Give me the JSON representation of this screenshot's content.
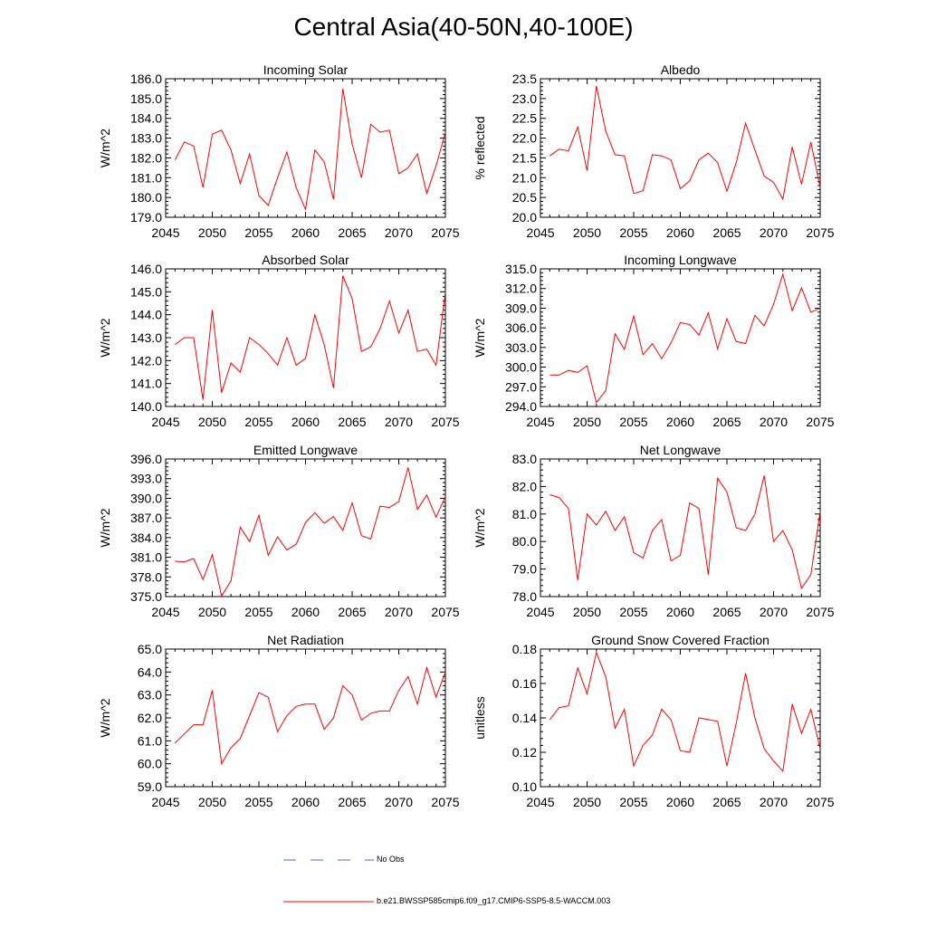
{
  "title": "Central Asia(40-50N,40-100E)",
  "legend": {
    "no_obs_label": "No Obs",
    "no_obs_color": "#4b6fc9",
    "model_label": "b.e21.BWSSP585cmip6.f09_g17.CMIP6-SSP5-8.5-WACCM.003",
    "model_color": "#ff0000"
  },
  "chart_data": [
    {
      "type": "line",
      "title": "Incoming Solar",
      "ylabel": "W/m^2",
      "xlabel": "",
      "xlim": [
        2045,
        2075
      ],
      "ylim": [
        179.0,
        186.0
      ],
      "grid": false,
      "xticks": [
        2045,
        2050,
        2055,
        2060,
        2065,
        2070,
        2075
      ],
      "yticks": [
        "179.0",
        "180.0",
        "181.0",
        "182.0",
        "183.0",
        "184.0",
        "185.0",
        "186.0"
      ],
      "series": [
        {
          "name": "b.e21.BWSSP585cmip6.f09_g17.CMIP6-SSP5-8.5-WACCM.003",
          "x": [
            2046,
            2047,
            2048,
            2049,
            2050,
            2051,
            2052,
            2053,
            2054,
            2055,
            2056,
            2057,
            2058,
            2059,
            2060,
            2061,
            2062,
            2063,
            2064,
            2065,
            2066,
            2067,
            2068,
            2069,
            2070,
            2071,
            2072,
            2073,
            2074,
            2075
          ],
          "values": [
            181.9,
            182.8,
            182.6,
            180.5,
            183.2,
            183.4,
            182.4,
            180.7,
            182.2,
            180.1,
            179.6,
            181.0,
            182.3,
            180.5,
            179.4,
            182.4,
            181.8,
            179.9,
            185.5,
            182.7,
            181.0,
            183.7,
            183.3,
            183.4,
            181.2,
            181.5,
            182.2,
            180.2,
            181.6,
            183.3
          ]
        }
      ]
    },
    {
      "type": "line",
      "title": "Albedo",
      "ylabel": "% reflected",
      "xlabel": "",
      "xlim": [
        2045,
        2075
      ],
      "ylim": [
        20.0,
        23.5
      ],
      "grid": false,
      "xticks": [
        2045,
        2050,
        2055,
        2060,
        2065,
        2070,
        2075
      ],
      "yticks": [
        "20.0",
        "20.5",
        "21.0",
        "21.5",
        "22.0",
        "22.5",
        "23.0",
        "23.5"
      ],
      "series": [
        {
          "name": "b.e21.BWSSP585cmip6.f09_g17.CMIP6-SSP5-8.5-WACCM.003",
          "x": [
            2046,
            2047,
            2048,
            2049,
            2050,
            2051,
            2052,
            2053,
            2054,
            2055,
            2056,
            2057,
            2058,
            2059,
            2060,
            2061,
            2062,
            2063,
            2064,
            2065,
            2066,
            2067,
            2068,
            2069,
            2070,
            2071,
            2072,
            2073,
            2074,
            2075
          ],
          "values": [
            21.55,
            21.72,
            21.68,
            22.28,
            21.18,
            23.32,
            22.18,
            21.58,
            21.55,
            20.6,
            20.67,
            21.58,
            21.55,
            21.45,
            20.72,
            20.92,
            21.45,
            21.62,
            21.38,
            20.66,
            21.38,
            22.38,
            21.7,
            21.04,
            20.88,
            20.46,
            21.78,
            20.83,
            21.9,
            20.75
          ]
        }
      ]
    },
    {
      "type": "line",
      "title": "Absorbed Solar",
      "ylabel": "W/m^2",
      "xlabel": "",
      "xlim": [
        2045,
        2075
      ],
      "ylim": [
        140.0,
        146.0
      ],
      "grid": false,
      "xticks": [
        2045,
        2050,
        2055,
        2060,
        2065,
        2070,
        2075
      ],
      "yticks": [
        "140.0",
        "141.0",
        "142.0",
        "143.0",
        "144.0",
        "145.0",
        "146.0"
      ],
      "series": [
        {
          "name": "b.e21.BWSSP585cmip6.f09_g17.CMIP6-SSP5-8.5-WACCM.003",
          "x": [
            2046,
            2047,
            2048,
            2049,
            2050,
            2051,
            2052,
            2053,
            2054,
            2055,
            2056,
            2057,
            2058,
            2059,
            2060,
            2061,
            2062,
            2063,
            2064,
            2065,
            2066,
            2067,
            2068,
            2069,
            2070,
            2071,
            2072,
            2073,
            2074,
            2075
          ],
          "values": [
            142.7,
            143.0,
            143.0,
            140.3,
            144.2,
            140.6,
            141.9,
            141.5,
            143.0,
            142.7,
            142.3,
            141.8,
            143.0,
            141.8,
            142.1,
            144.0,
            142.7,
            140.8,
            145.7,
            144.7,
            142.4,
            142.6,
            143.4,
            144.6,
            143.2,
            144.2,
            142.4,
            142.5,
            141.8,
            145.0
          ]
        }
      ]
    },
    {
      "type": "line",
      "title": "Incoming Longwave",
      "ylabel": "W/m^2",
      "xlabel": "",
      "xlim": [
        2045,
        2075
      ],
      "ylim": [
        294.0,
        315.0
      ],
      "grid": false,
      "xticks": [
        2045,
        2050,
        2055,
        2060,
        2065,
        2070,
        2075
      ],
      "yticks": [
        "294.0",
        "297.0",
        "300.0",
        "303.0",
        "306.0",
        "309.0",
        "312.0",
        "315.0"
      ],
      "series": [
        {
          "name": "b.e21.BWSSP585cmip6.f09_g17.CMIP6-SSP5-8.5-WACCM.003",
          "x": [
            2046,
            2047,
            2048,
            2049,
            2050,
            2051,
            2052,
            2053,
            2054,
            2055,
            2056,
            2057,
            2058,
            2059,
            2060,
            2061,
            2062,
            2063,
            2064,
            2065,
            2066,
            2067,
            2068,
            2069,
            2070,
            2071,
            2072,
            2073,
            2074,
            2075
          ],
          "values": [
            298.8,
            298.8,
            299.5,
            299.2,
            300.2,
            294.6,
            296.4,
            305.1,
            302.7,
            307.8,
            301.9,
            303.6,
            301.3,
            303.7,
            306.8,
            306.5,
            304.9,
            308.3,
            302.8,
            307.4,
            303.9,
            303.6,
            307.9,
            306.3,
            309.6,
            314.2,
            308.6,
            312.1,
            308.4,
            309.0
          ]
        }
      ]
    },
    {
      "type": "line",
      "title": "Emitted Longwave",
      "ylabel": "W/m^2",
      "xlabel": "",
      "xlim": [
        2045,
        2075
      ],
      "ylim": [
        375.0,
        396.0
      ],
      "grid": false,
      "xticks": [
        2045,
        2050,
        2055,
        2060,
        2065,
        2070,
        2075
      ],
      "yticks": [
        "375.0",
        "378.0",
        "381.0",
        "384.0",
        "387.0",
        "390.0",
        "393.0",
        "396.0"
      ],
      "series": [
        {
          "name": "b.e21.BWSSP585cmip6.f09_g17.CMIP6-SSP5-8.5-WACCM.003",
          "x": [
            2046,
            2047,
            2048,
            2049,
            2050,
            2051,
            2052,
            2053,
            2054,
            2055,
            2056,
            2057,
            2058,
            2059,
            2060,
            2061,
            2062,
            2063,
            2064,
            2065,
            2066,
            2067,
            2068,
            2069,
            2070,
            2071,
            2072,
            2073,
            2074,
            2075
          ],
          "values": [
            380.4,
            380.3,
            380.8,
            377.6,
            381.4,
            375.1,
            377.4,
            385.6,
            383.4,
            387.4,
            381.3,
            384.1,
            382.1,
            383.0,
            386.3,
            387.8,
            386.2,
            387.2,
            385.1,
            389.3,
            384.3,
            383.8,
            388.8,
            388.6,
            389.5,
            394.7,
            388.3,
            390.5,
            387.1,
            390.3
          ]
        }
      ]
    },
    {
      "type": "line",
      "title": "Net Longwave",
      "ylabel": "W/m^2",
      "xlabel": "",
      "xlim": [
        2045,
        2075
      ],
      "ylim": [
        78.0,
        83.0
      ],
      "grid": false,
      "xticks": [
        2045,
        2050,
        2055,
        2060,
        2065,
        2070,
        2075
      ],
      "yticks": [
        "78.0",
        "79.0",
        "80.0",
        "81.0",
        "82.0",
        "83.0"
      ],
      "series": [
        {
          "name": "b.e21.BWSSP585cmip6.f09_g17.CMIP6-SSP5-8.5-WACCM.003",
          "x": [
            2046,
            2047,
            2048,
            2049,
            2050,
            2051,
            2052,
            2053,
            2054,
            2055,
            2056,
            2057,
            2058,
            2059,
            2060,
            2061,
            2062,
            2063,
            2064,
            2065,
            2066,
            2067,
            2068,
            2069,
            2070,
            2071,
            2072,
            2073,
            2074,
            2075
          ],
          "values": [
            81.7,
            81.6,
            81.2,
            78.6,
            81.0,
            80.6,
            81.1,
            80.4,
            80.9,
            79.6,
            79.4,
            80.4,
            80.8,
            79.3,
            79.5,
            81.4,
            81.2,
            78.8,
            82.3,
            81.8,
            80.5,
            80.4,
            81.0,
            82.4,
            80.0,
            80.4,
            79.7,
            78.3,
            78.8,
            81.1
          ]
        }
      ]
    },
    {
      "type": "line",
      "title": "Net Radiation",
      "ylabel": "W/m^2",
      "xlabel": "",
      "xlim": [
        2045,
        2075
      ],
      "ylim": [
        59.0,
        65.0
      ],
      "grid": false,
      "xticks": [
        2045,
        2050,
        2055,
        2060,
        2065,
        2070,
        2075
      ],
      "yticks": [
        "59.0",
        "60.0",
        "61.0",
        "62.0",
        "63.0",
        "64.0",
        "65.0"
      ],
      "series": [
        {
          "name": "b.e21.BWSSP585cmip6.f09_g17.CMIP6-SSP5-8.5-WACCM.003",
          "x": [
            2046,
            2047,
            2048,
            2049,
            2050,
            2051,
            2052,
            2053,
            2054,
            2055,
            2056,
            2057,
            2058,
            2059,
            2060,
            2061,
            2062,
            2063,
            2064,
            2065,
            2066,
            2067,
            2068,
            2069,
            2070,
            2071,
            2072,
            2073,
            2074,
            2075
          ],
          "values": [
            60.9,
            61.3,
            61.7,
            61.7,
            63.2,
            60.0,
            60.7,
            61.1,
            62.1,
            63.1,
            62.9,
            61.4,
            62.1,
            62.5,
            62.6,
            62.6,
            61.5,
            62.0,
            63.4,
            63.0,
            61.9,
            62.2,
            62.3,
            62.3,
            63.2,
            63.8,
            62.6,
            64.2,
            62.9,
            64.0
          ]
        }
      ]
    },
    {
      "type": "line",
      "title": "Ground Snow Covered Fraction",
      "ylabel": "unitless",
      "xlabel": "",
      "xlim": [
        2045,
        2075
      ],
      "ylim": [
        0.1,
        0.18
      ],
      "grid": false,
      "xticks": [
        2045,
        2050,
        2055,
        2060,
        2065,
        2070,
        2075
      ],
      "yticks": [
        "0.10",
        "0.12",
        "0.14",
        "0.16",
        "0.18"
      ],
      "series": [
        {
          "name": "b.e21.BWSSP585cmip6.f09_g17.CMIP6-SSP5-8.5-WACCM.003",
          "x": [
            2046,
            2047,
            2048,
            2049,
            2050,
            2051,
            2052,
            2053,
            2054,
            2055,
            2056,
            2057,
            2058,
            2059,
            2060,
            2061,
            2062,
            2063,
            2064,
            2065,
            2066,
            2067,
            2068,
            2069,
            2070,
            2071,
            2072,
            2073,
            2074,
            2075
          ],
          "values": [
            0.139,
            0.146,
            0.147,
            0.169,
            0.154,
            0.178,
            0.164,
            0.134,
            0.145,
            0.112,
            0.124,
            0.13,
            0.145,
            0.139,
            0.121,
            0.12,
            0.14,
            0.139,
            0.138,
            0.112,
            0.137,
            0.166,
            0.14,
            0.122,
            0.115,
            0.109,
            0.148,
            0.131,
            0.145,
            0.122
          ]
        }
      ]
    }
  ]
}
